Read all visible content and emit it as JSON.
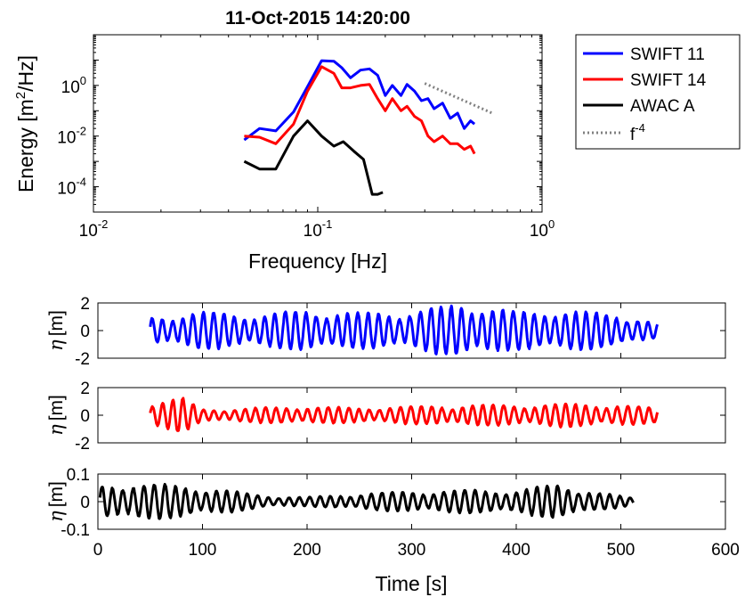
{
  "chart_data": [
    {
      "type": "line",
      "title": "11-Oct-2015 14:20:00",
      "xlabel": "Frequency [Hz]",
      "ylabel_main": "Energy [m",
      "ylabel_sup": "2",
      "ylabel_tail": "/Hz]",
      "xscale": "log",
      "yscale": "log",
      "xlim": [
        0.01,
        1
      ],
      "ylim": [
        1e-05,
        100
      ],
      "x_ticks": [
        {
          "base": "10",
          "exp": "-2",
          "value": 0.01
        },
        {
          "base": "10",
          "exp": "-1",
          "value": 0.1
        },
        {
          "base": "10",
          "exp": "0",
          "value": 1
        }
      ],
      "y_ticks": [
        {
          "base": "10",
          "exp": "-4",
          "value": 0.0001
        },
        {
          "base": "10",
          "exp": "-2",
          "value": 0.01
        },
        {
          "base": "10",
          "exp": "0",
          "value": 1
        }
      ],
      "grid": false,
      "legend_position": "outside-right",
      "series": [
        {
          "name": "SWIFT 11",
          "color": "#0000ff",
          "style": "solid",
          "x": [
            0.047,
            0.055,
            0.065,
            0.078,
            0.09,
            0.104,
            0.118,
            0.128,
            0.14,
            0.155,
            0.17,
            0.185,
            0.2,
            0.215,
            0.235,
            0.25,
            0.27,
            0.29,
            0.31,
            0.33,
            0.36,
            0.39,
            0.42,
            0.45,
            0.48,
            0.5
          ],
          "y": [
            0.007,
            0.02,
            0.016,
            0.09,
            0.9,
            9.5,
            9.0,
            5.0,
            2.0,
            4.0,
            4.5,
            2.5,
            0.4,
            1.0,
            0.4,
            1.1,
            0.6,
            0.25,
            0.3,
            0.12,
            0.2,
            0.05,
            0.08,
            0.02,
            0.04,
            0.03
          ]
        },
        {
          "name": "SWIFT 14",
          "color": "#ff0000",
          "style": "solid",
          "x": [
            0.047,
            0.055,
            0.065,
            0.078,
            0.09,
            0.104,
            0.118,
            0.128,
            0.14,
            0.155,
            0.17,
            0.185,
            0.2,
            0.215,
            0.235,
            0.25,
            0.27,
            0.29,
            0.31,
            0.33,
            0.36,
            0.39,
            0.42,
            0.45,
            0.48,
            0.5
          ],
          "y": [
            0.01,
            0.009,
            0.005,
            0.03,
            0.6,
            5.5,
            3.0,
            0.8,
            0.8,
            1.0,
            1.1,
            0.3,
            0.1,
            0.3,
            0.1,
            0.15,
            0.06,
            0.04,
            0.01,
            0.006,
            0.01,
            0.005,
            0.005,
            0.003,
            0.004,
            0.002
          ]
        },
        {
          "name": "AWAC A",
          "color": "#000000",
          "style": "solid",
          "x": [
            0.047,
            0.055,
            0.065,
            0.078,
            0.09,
            0.104,
            0.118,
            0.13,
            0.145,
            0.16,
            0.175,
            0.185,
            0.195
          ],
          "y": [
            0.001,
            0.0005,
            0.0005,
            0.01,
            0.04,
            0.01,
            0.004,
            0.006,
            0.0025,
            0.0012,
            5e-05,
            5e-05,
            6e-05
          ]
        },
        {
          "name": "f",
          "name_sup": "-4",
          "color": "#808080",
          "style": "dotted",
          "x": [
            0.3,
            0.6
          ],
          "y": [
            1.2,
            0.08
          ]
        }
      ]
    },
    {
      "type": "line",
      "ylabel_symbol": "η",
      "ylabel_unit": "[m]",
      "xlim": [
        0,
        600
      ],
      "ylim": [
        -2,
        2
      ],
      "y_ticks": [
        2,
        0,
        -2
      ],
      "series": [
        {
          "name": "SWIFT 11",
          "color": "#0000ff",
          "t_start": 50,
          "t_end": 535,
          "period": 10,
          "amplitude": 1.0,
          "envelope_t": [
            50,
            100,
            150,
            200,
            250,
            300,
            350,
            400,
            450,
            500,
            535
          ],
          "envelope_a": [
            0.9,
            1.3,
            1.1,
            1.4,
            1.2,
            1.3,
            1.9,
            1.3,
            1.4,
            1.1,
            0.5
          ]
        }
      ]
    },
    {
      "type": "line",
      "ylabel_symbol": "η",
      "ylabel_unit": "[m]",
      "xlim": [
        0,
        600
      ],
      "ylim": [
        -2,
        2
      ],
      "y_ticks": [
        2,
        0,
        -2
      ],
      "series": [
        {
          "name": "SWIFT 14",
          "color": "#ff0000",
          "t_start": 50,
          "t_end": 535,
          "period": 10,
          "amplitude": 0.6,
          "envelope_t": [
            50,
            80,
            100,
            150,
            200,
            250,
            300,
            350,
            400,
            450,
            500,
            535
          ],
          "envelope_a": [
            0.9,
            1.2,
            0.4,
            0.5,
            0.6,
            0.5,
            0.6,
            0.7,
            0.7,
            0.8,
            0.7,
            0.5
          ]
        }
      ]
    },
    {
      "type": "line",
      "ylabel_symbol": "η",
      "ylabel_unit": "[m]",
      "xlabel": "Time [s]",
      "xlim": [
        0,
        600
      ],
      "ylim": [
        -0.1,
        0.1
      ],
      "y_ticks": [
        "0.1",
        "0",
        "-0.1"
      ],
      "x_ticks": [
        "0",
        "100",
        "200",
        "300",
        "400",
        "500",
        "600"
      ],
      "series": [
        {
          "name": "AWAC A",
          "color": "#000000",
          "t_start": 2,
          "t_end": 512,
          "period": 10,
          "amplitude": 0.05,
          "envelope_t": [
            2,
            30,
            80,
            120,
            160,
            200,
            260,
            300,
            350,
            400,
            440,
            480,
            512
          ],
          "envelope_a": [
            0.055,
            0.065,
            0.055,
            0.04,
            0.02,
            0.015,
            0.03,
            0.035,
            0.04,
            0.04,
            0.06,
            0.03,
            0.012
          ]
        }
      ]
    }
  ]
}
